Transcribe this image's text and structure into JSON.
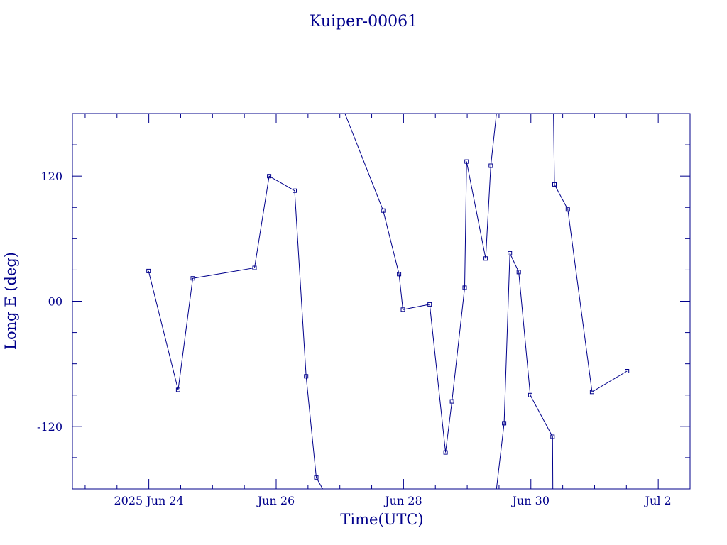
{
  "chart_data": {
    "type": "line",
    "title": "Kuiper-00061",
    "xlabel": "Time(UTC)",
    "ylabel": "Long E (deg)",
    "color": "#00008b",
    "x_unit": "days",
    "xlim": [
      21.8,
      31.5
    ],
    "ylim": [
      -180,
      180
    ],
    "grid": false,
    "legend": "none",
    "x_ticks": [
      {
        "x": 23.0,
        "label": "2025 Jun 24"
      },
      {
        "x": 25.0,
        "label": "Jun 26"
      },
      {
        "x": 27.0,
        "label": "Jun 28"
      },
      {
        "x": 29.0,
        "label": "Jun 30"
      },
      {
        "x": 31.0,
        "label": "Jul  2"
      }
    ],
    "x_minor_ticks": [
      22.0,
      22.5,
      23.5,
      24.0,
      24.5,
      25.5,
      26.0,
      26.5,
      27.5,
      28.0,
      28.5,
      29.5,
      30.0,
      30.5
    ],
    "y_ticks": [
      {
        "y": 120,
        "label": "120"
      },
      {
        "y": 0,
        "label": "00"
      },
      {
        "y": -120,
        "label": "-120"
      }
    ],
    "y_minor_ticks": [
      150,
      90,
      60,
      30,
      -30,
      -60,
      -90,
      -150
    ],
    "series": [
      {
        "points": [
          {
            "x": 22.995,
            "y": 29,
            "m": true
          },
          {
            "x": 23.46,
            "y": -85,
            "m": true
          },
          {
            "x": 23.69,
            "y": 22,
            "m": true
          },
          {
            "x": 24.66,
            "y": 32,
            "m": true
          },
          {
            "x": 24.89,
            "y": 120,
            "m": true
          },
          {
            "x": 25.29,
            "y": 106,
            "m": true
          },
          {
            "x": 25.47,
            "y": -72,
            "m": true
          },
          {
            "x": 25.63,
            "y": -169,
            "m": true
          },
          {
            "x": 25.73,
            "y": -180,
            "m": false
          }
        ]
      },
      {
        "points": [
          {
            "x": 26.08,
            "y": 180,
            "m": false
          },
          {
            "x": 26.68,
            "y": 87,
            "m": true
          },
          {
            "x": 26.93,
            "y": 26,
            "m": true
          },
          {
            "x": 26.99,
            "y": -8,
            "m": true
          },
          {
            "x": 27.41,
            "y": -3,
            "m": true
          },
          {
            "x": 27.66,
            "y": -145,
            "m": true
          },
          {
            "x": 27.76,
            "y": -96,
            "m": true
          },
          {
            "x": 27.96,
            "y": 13,
            "m": true
          },
          {
            "x": 27.99,
            "y": 134,
            "m": true
          },
          {
            "x": 28.29,
            "y": 41,
            "m": true
          },
          {
            "x": 28.37,
            "y": 130,
            "m": true
          },
          {
            "x": 28.46,
            "y": 180,
            "m": false
          }
        ]
      },
      {
        "points": [
          {
            "x": 28.46,
            "y": -180,
            "m": false
          },
          {
            "x": 28.58,
            "y": -117,
            "m": true
          },
          {
            "x": 28.67,
            "y": 46,
            "m": true
          },
          {
            "x": 28.81,
            "y": 28,
            "m": true
          },
          {
            "x": 28.99,
            "y": -90,
            "m": true
          },
          {
            "x": 29.34,
            "y": -130,
            "m": true
          },
          {
            "x": 29.345,
            "y": -180,
            "m": false
          }
        ]
      },
      {
        "points": [
          {
            "x": 29.355,
            "y": 180,
            "m": false
          },
          {
            "x": 29.37,
            "y": 112,
            "m": true
          },
          {
            "x": 29.58,
            "y": 88,
            "m": true
          },
          {
            "x": 29.96,
            "y": -87,
            "m": true
          },
          {
            "x": 30.51,
            "y": -67,
            "m": true
          }
        ]
      }
    ]
  }
}
